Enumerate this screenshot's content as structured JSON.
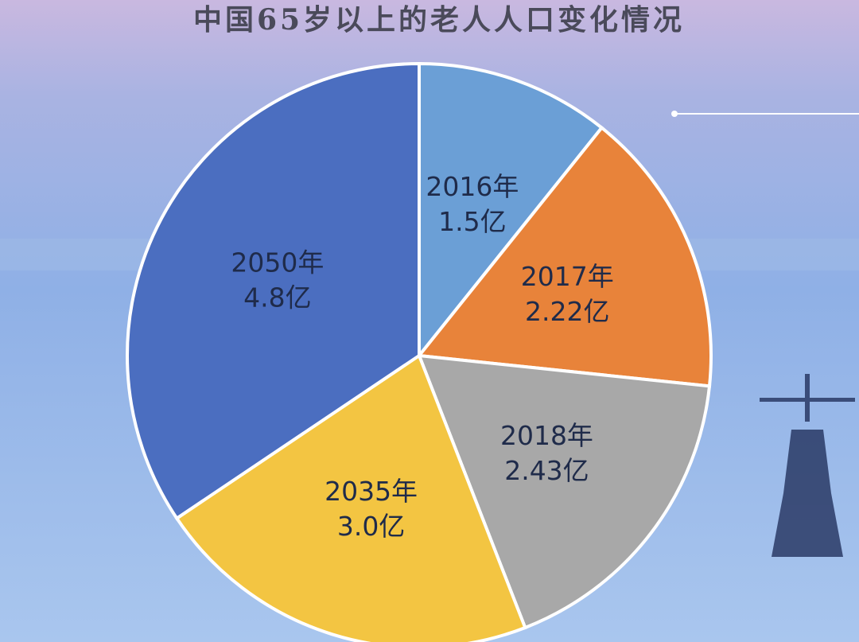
{
  "chart_data": {
    "type": "pie",
    "title": "中国65岁以上的老人人口变化情况",
    "categories": [
      "2016年",
      "2017年",
      "2018年",
      "2035年",
      "2050年"
    ],
    "values": [
      1.5,
      2.22,
      2.43,
      3.0,
      4.8
    ],
    "value_labels": [
      "1.5亿",
      "2.22亿",
      "2.43亿",
      "3.0亿",
      "4.8亿"
    ],
    "colors": [
      "#6b9fd6",
      "#e8833a",
      "#a8a8a8",
      "#f3c542",
      "#4b6ec0"
    ]
  }
}
